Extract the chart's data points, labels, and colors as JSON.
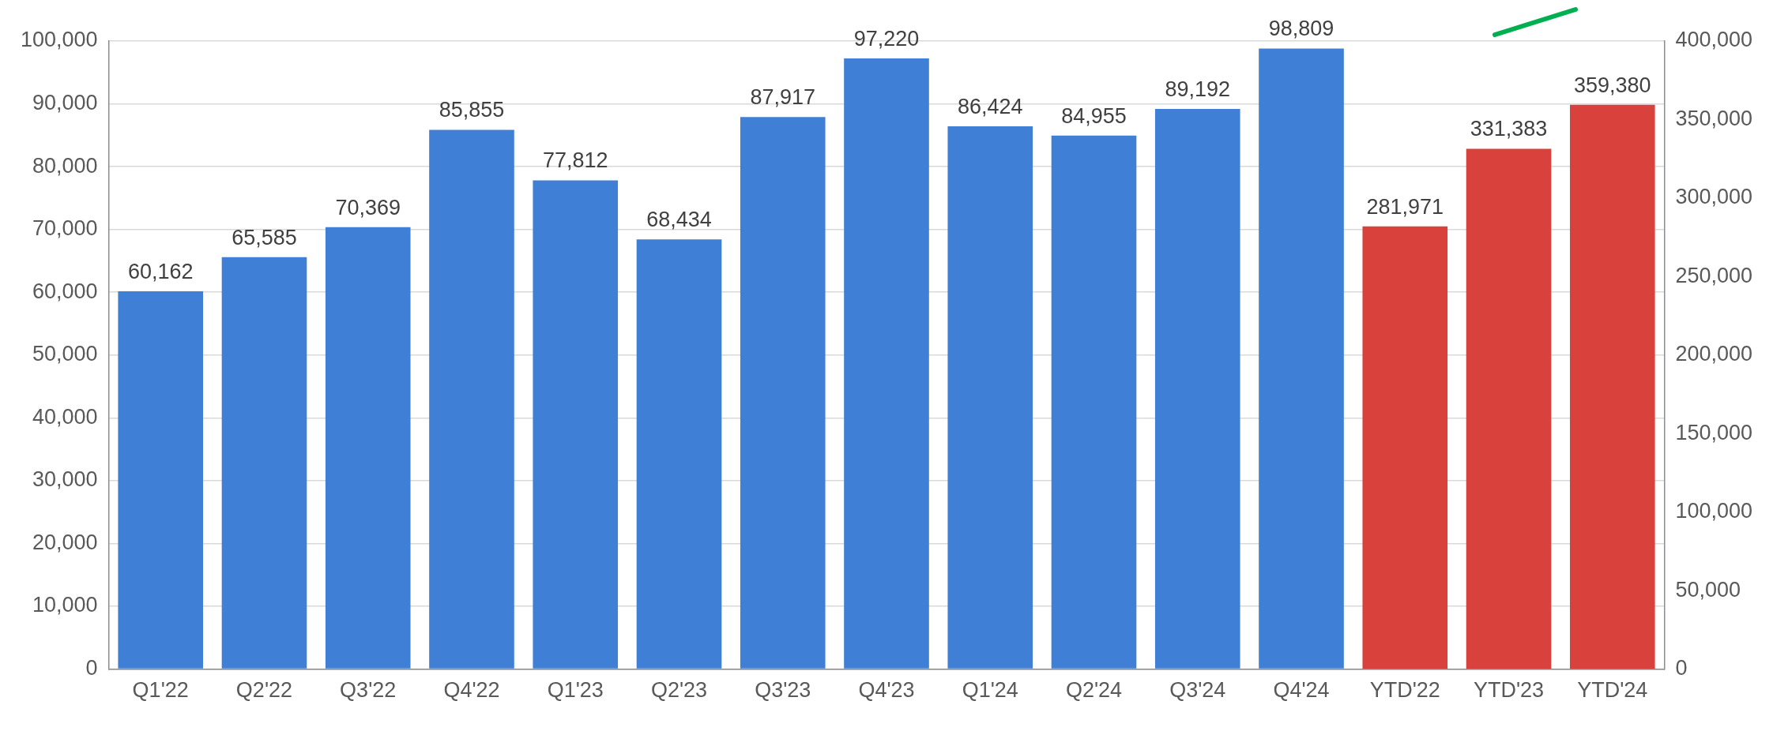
{
  "chart_data": {
    "type": "bar",
    "categories": [
      "Q1'22",
      "Q2'22",
      "Q3'22",
      "Q4'22",
      "Q1'23",
      "Q2'23",
      "Q3'23",
      "Q4'23",
      "Q1'24",
      "Q2'24",
      "Q3'24",
      "Q4'24",
      "YTD'22",
      "YTD'23",
      "YTD'24"
    ],
    "series": [
      {
        "color": "#3f80d6",
        "values": [
          60162,
          65585,
          70369,
          85855,
          77812,
          68434,
          87917,
          97220,
          86424,
          84955,
          89192,
          98809,
          null,
          null,
          null
        ],
        "value_labels": [
          "60,162",
          "65,585",
          "70,369",
          "85,855",
          "77,812",
          "68,434",
          "87,917",
          "97,220",
          "86,424",
          "84,955",
          "89,192",
          "98,809",
          null,
          null,
          null
        ]
      },
      {
        "color": "#d9413d",
        "axis": "y2",
        "values": [
          null,
          null,
          null,
          null,
          null,
          null,
          null,
          null,
          null,
          null,
          null,
          null,
          281971,
          331383,
          359380
        ],
        "value_labels": [
          null,
          null,
          null,
          null,
          null,
          null,
          null,
          null,
          null,
          null,
          null,
          null,
          "281,971",
          "331,383",
          "359,380"
        ]
      }
    ],
    "ylim": [
      0,
      100000
    ],
    "yticks": [
      0,
      {
        "value": 10000,
        "label": "10,000"
      },
      {
        "value": 20000,
        "label": "20,000"
      },
      {
        "value": 30000,
        "label": "30,000"
      },
      {
        "value": 40000,
        "label": "40,000"
      },
      {
        "value": 50000,
        "label": "50,000"
      },
      {
        "value": 60000,
        "label": "60,000"
      },
      {
        "value": 70000,
        "label": "70,000"
      },
      {
        "value": 80000,
        "label": "80,000"
      },
      {
        "value": 90000,
        "label": "90,000"
      },
      {
        "value": 100000,
        "label": "100,000"
      }
    ],
    "y2lim": [
      0,
      400000
    ],
    "y2ticks": [
      0,
      {
        "value": 50000,
        "label": "50,000"
      },
      {
        "value": 100000,
        "label": "100,000"
      },
      {
        "value": 150000,
        "label": "150,000"
      },
      {
        "value": 200000,
        "label": "200,000"
      },
      {
        "value": 250000,
        "label": "250,000"
      },
      {
        "value": 300000,
        "label": "300,000"
      },
      {
        "value": 350000,
        "label": "350,000"
      },
      {
        "value": 400000,
        "label": "400,000"
      }
    ],
    "grid": "y",
    "legend": false
  }
}
